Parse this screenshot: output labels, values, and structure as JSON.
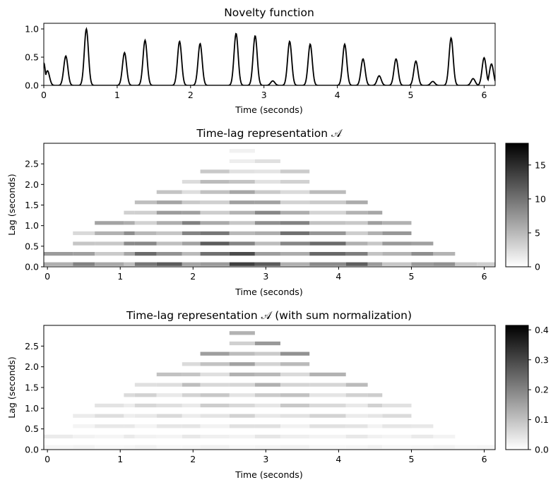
{
  "chart_data": [
    {
      "type": "line",
      "title": "Novelty function",
      "xlabel": "Time (seconds)",
      "ylabel": "",
      "xlim": [
        0,
        6.15
      ],
      "ylim": [
        0,
        1.1
      ],
      "xticks": [
        "0",
        "1",
        "2",
        "3",
        "4",
        "5",
        "6"
      ],
      "yticks": [
        "0.0",
        "0.5",
        "1.0"
      ],
      "series_color": "#000000",
      "start_value": 0.4,
      "peaks": [
        {
          "t": 0.05,
          "h": 0.26
        },
        {
          "t": 0.3,
          "h": 0.52
        },
        {
          "t": 0.58,
          "h": 1.0
        },
        {
          "t": 1.1,
          "h": 0.58
        },
        {
          "t": 1.38,
          "h": 0.8
        },
        {
          "t": 1.85,
          "h": 0.78
        },
        {
          "t": 2.13,
          "h": 0.74
        },
        {
          "t": 2.62,
          "h": 0.92
        },
        {
          "t": 2.88,
          "h": 0.88
        },
        {
          "t": 3.12,
          "h": 0.08
        },
        {
          "t": 3.35,
          "h": 0.78
        },
        {
          "t": 3.63,
          "h": 0.73
        },
        {
          "t": 4.1,
          "h": 0.73
        },
        {
          "t": 4.35,
          "h": 0.47
        },
        {
          "t": 4.57,
          "h": 0.17
        },
        {
          "t": 4.8,
          "h": 0.47
        },
        {
          "t": 5.07,
          "h": 0.43
        },
        {
          "t": 5.3,
          "h": 0.07
        },
        {
          "t": 5.55,
          "h": 0.84
        },
        {
          "t": 5.85,
          "h": 0.12
        },
        {
          "t": 6.0,
          "h": 0.49
        },
        {
          "t": 6.1,
          "h": 0.38
        }
      ]
    },
    {
      "type": "heatmap",
      "title": "Time-lag representation 𝒜",
      "xlabel": "Time (seconds)",
      "ylabel": "Lag (seconds)",
      "xlim": [
        -0.05,
        6.15
      ],
      "ylim": [
        0,
        3.0
      ],
      "xticks": [
        "0",
        "1",
        "2",
        "3",
        "4",
        "5",
        "6"
      ],
      "yticks": [
        "0.0",
        "0.5",
        "1.0",
        "1.5",
        "2.0",
        "2.5"
      ],
      "colormap": "gray_r",
      "colorbar": {
        "min": 0,
        "max": 18.2,
        "ticks": [
          "0",
          "5",
          "10",
          "15"
        ]
      },
      "lag_bands": [
        0.05,
        0.3,
        0.55,
        0.8,
        1.05,
        1.3,
        1.55,
        1.8,
        2.05,
        2.3,
        2.55,
        2.8
      ]
    },
    {
      "type": "heatmap",
      "title": "Time-lag representation 𝒜 (with sum normalization)",
      "xlabel": "Time (seconds)",
      "ylabel": "Lag (seconds)",
      "xlim": [
        -0.05,
        6.15
      ],
      "ylim": [
        0,
        3.0
      ],
      "xticks": [
        "0",
        "1",
        "2",
        "3",
        "4",
        "5",
        "6"
      ],
      "yticks": [
        "0.0",
        "0.5",
        "1.0",
        "1.5",
        "2.0",
        "2.5"
      ],
      "colormap": "gray_r",
      "colorbar": {
        "min": 0,
        "max": 0.415,
        "ticks": [
          "0.0",
          "0.1",
          "0.2",
          "0.3",
          "0.4"
        ]
      },
      "lag_bands": [
        0.05,
        0.3,
        0.55,
        0.8,
        1.05,
        1.3,
        1.55,
        1.8,
        2.05,
        2.3,
        2.55,
        2.8
      ]
    }
  ]
}
